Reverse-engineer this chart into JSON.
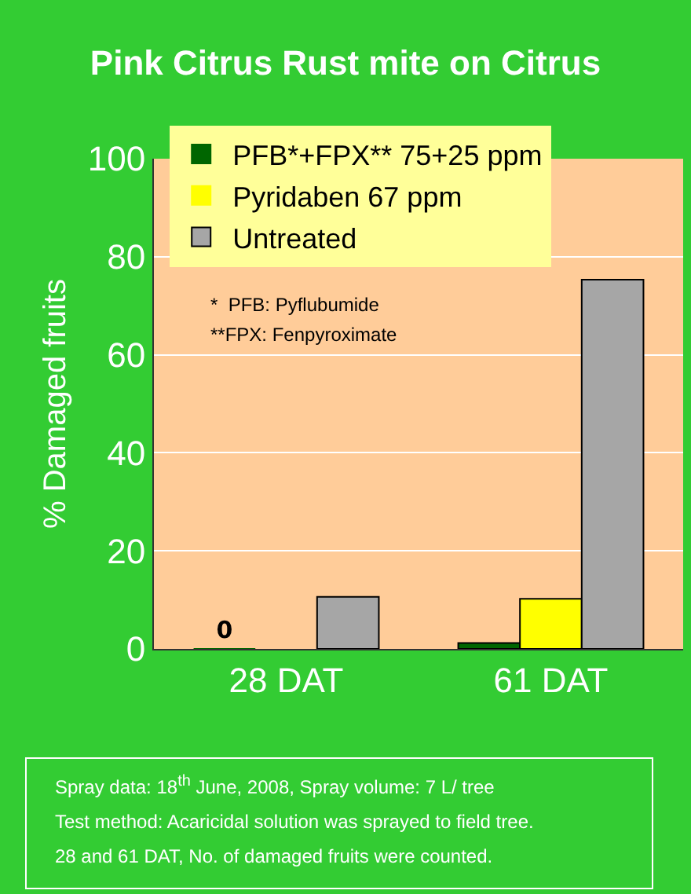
{
  "chart_data": {
    "type": "bar",
    "title": "Pink Citrus Rust mite on Citrus",
    "categories": [
      "28 DAT",
      "61 DAT"
    ],
    "series": [
      {
        "name": "PFB*+FPX** 75+25 ppm",
        "color": "#006600",
        "values": [
          0,
          1.2
        ],
        "value_labels": [
          "0",
          null
        ]
      },
      {
        "name": "Pyridaben 67 ppm",
        "color": "#ffff00",
        "values": [
          null,
          10.2
        ]
      },
      {
        "name": "Untreated",
        "color": "#a6a6a6",
        "values": [
          10.6,
          75.3
        ]
      }
    ],
    "ylabel": "% Damaged fruits",
    "ylim": [
      0,
      100
    ],
    "yticks": [
      0,
      20,
      40,
      60,
      80,
      100
    ],
    "grid": "y",
    "legend": "top",
    "annotations": [
      "*  PFB: Pyflubumide",
      "**FPX: Fenpyroximate",
      "Spray data: 18$^{th}$ June, 2008, Spray volume: 7 L/ tree",
      "Test method: Acaricidal solution was sprayed to field tree.",
      "28 and 61 DAT, No. of damaged fruits were counted."
    ]
  }
}
